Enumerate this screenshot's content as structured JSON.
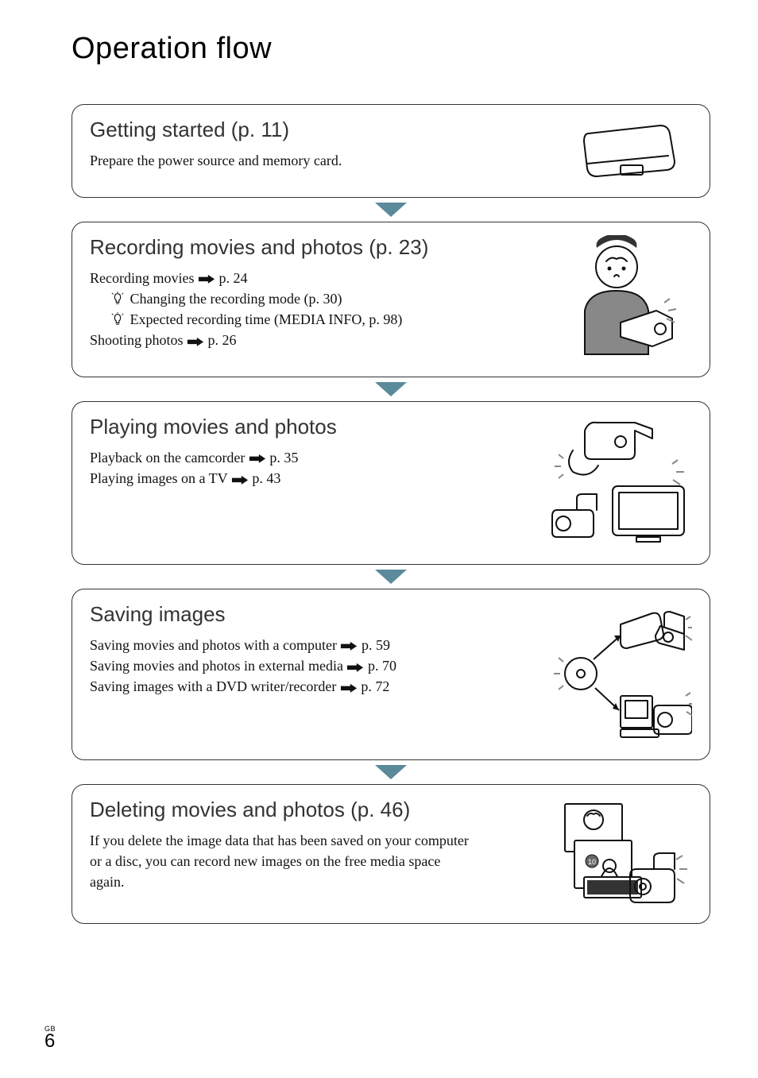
{
  "title": "Operation flow",
  "footer": {
    "region": "GB",
    "page": "6"
  },
  "arrow_color": "#5b8a9a",
  "sections": [
    {
      "title": "Getting started (p. 11)",
      "body_lines": [
        {
          "text": "Prepare the power source and memory card."
        }
      ],
      "illus_height": 82,
      "has_arrow_after": true
    },
    {
      "title": "Recording movies and photos (p. 23)",
      "body_lines": [
        {
          "text": "Recording movies",
          "arrow": true,
          "after": " p. 24"
        },
        {
          "indent": true,
          "hint": true,
          "text": "Changing the recording mode (p. 30)"
        },
        {
          "indent": true,
          "hint": true,
          "text": "Expected recording time (MEDIA INFO, p. 98)"
        },
        {
          "text": "Shooting photos",
          "arrow": true,
          "after": " p. 26"
        }
      ],
      "illus_height": 160,
      "has_arrow_after": true
    },
    {
      "title": "Playing movies and photos",
      "body_lines": [
        {
          "text": "Playback on the camcorder",
          "arrow": true,
          "after": " p. 35"
        },
        {
          "text": "Playing images on a TV",
          "arrow": true,
          "after": " p. 43"
        }
      ],
      "illus_height": 170,
      "has_arrow_after": true
    },
    {
      "title": "Saving images",
      "body_lines": [
        {
          "text": "Saving movies and photos with a computer",
          "arrow": true,
          "after": " p. 59"
        },
        {
          "text": "Saving movies and photos in external media",
          "arrow": true,
          "after": " p. 70"
        },
        {
          "text": "Saving images with a DVD writer/recorder",
          "arrow": true,
          "after": " p. 72"
        }
      ],
      "illus_height": 180,
      "has_arrow_after": true
    },
    {
      "title": "Deleting movies and photos (p. 46)",
      "body_lines": [
        {
          "text": "If you delete the image data that has been saved on your computer or a disc, you can record new images on the free media space again."
        }
      ],
      "illus_height": 140,
      "has_arrow_after": false,
      "text_max_width": 480
    }
  ]
}
